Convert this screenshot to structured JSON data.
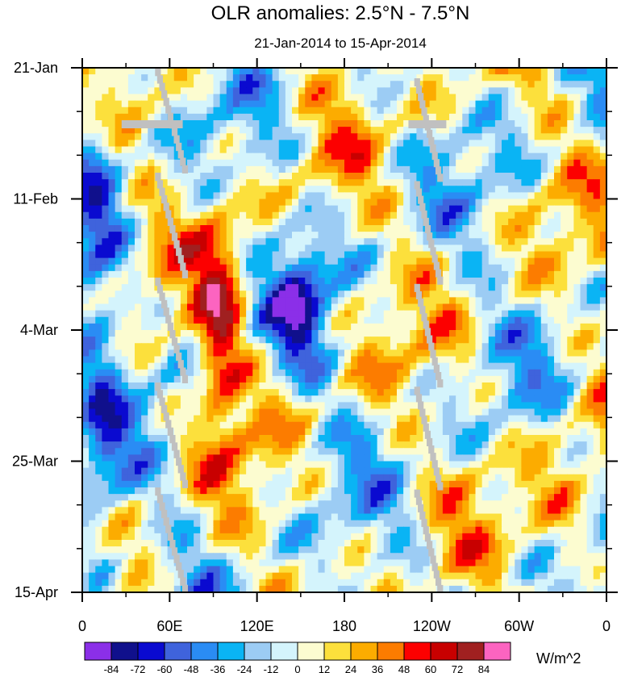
{
  "chart_data": {
    "type": "heatmap",
    "title": "OLR anomalies: 2.5°N - 7.5°N",
    "subtitle": "21-Jan-2014 to 15-Apr-2014",
    "xlabel": "",
    "ylabel": "",
    "x_ticks": [
      "0",
      "60E",
      "120E",
      "180",
      "120W",
      "60W",
      "0"
    ],
    "x_range_deg_east": [
      0,
      360
    ],
    "y_ticks": [
      "21-Jan",
      "11-Feb",
      "4-Mar",
      "25-Mar",
      "15-Apr"
    ],
    "time_range": [
      "21-Jan-2014",
      "15-Apr-2014"
    ],
    "units": "W/m^2",
    "colorbar": {
      "labels": [
        "-84",
        "-72",
        "-60",
        "-48",
        "-36",
        "-24",
        "-12",
        "0",
        "12",
        "24",
        "36",
        "48",
        "60",
        "72",
        "84"
      ],
      "colors": [
        "#8b2fe8",
        "#10108c",
        "#0a0ad0",
        "#3f63dc",
        "#2a8cf4",
        "#0ab4f4",
        "#9cccf4",
        "#d4f4fc",
        "#fcfcd0",
        "#fce03c",
        "#fcac00",
        "#fc7c00",
        "#fc0000",
        "#c80000",
        "#a02020",
        "#fc64c0"
      ]
    },
    "missing_color": "#c0c0c0",
    "features": {
      "warm_core_lon_deg": 95,
      "cold_core_lon_deg": 150,
      "missing_strips": "two eastward-tilted grey strips near 40E-70E and 115W-130W"
    }
  }
}
